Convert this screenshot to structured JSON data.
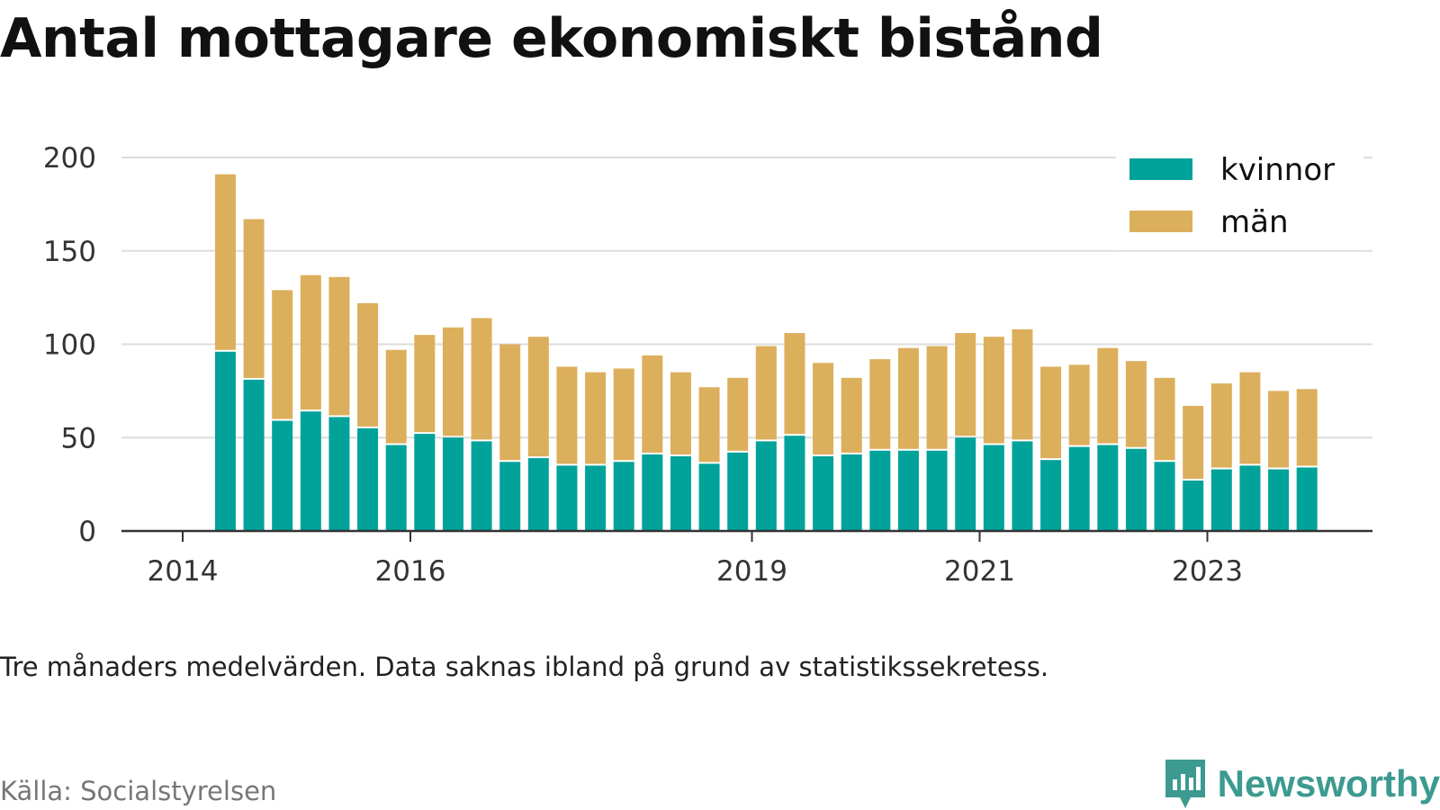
{
  "title": "Antal mottagare ekonomiskt bistånd",
  "note": "Tre månaders medelvärden. Data saknas ibland på grund av statistikssekretess.",
  "source": "Källa: Socialstyrelsen",
  "brand": "Newsworthy",
  "colors": {
    "kvinnor": "#00a29a",
    "man": "#dcaf5c",
    "grid": "#dddddd",
    "axis": "#333333",
    "brand": "#3c9a90"
  },
  "chart_data": {
    "type": "bar",
    "stacked": true,
    "x_ticks": [
      "2014",
      "2016",
      "2019",
      "2021",
      "2023"
    ],
    "y_ticks": [
      0,
      50,
      100,
      150,
      200
    ],
    "ylim": [
      0,
      200
    ],
    "grid": true,
    "legend_position": "top-right",
    "x_unit": "quarter",
    "x": [
      "2014-Q2",
      "2014-Q3",
      "2014-Q4",
      "2015-Q1",
      "2015-Q2",
      "2015-Q3",
      "2015-Q4",
      "2016-Q1",
      "2016-Q2",
      "2016-Q3",
      "2016-Q4",
      "2017-Q1",
      "2017-Q2",
      "2017-Q3",
      "2017-Q4",
      "2018-Q1",
      "2018-Q2",
      "2018-Q3",
      "2018-Q4",
      "2019-Q1",
      "2019-Q2",
      "2019-Q3",
      "2019-Q4",
      "2020-Q1",
      "2020-Q2",
      "2020-Q3",
      "2020-Q4",
      "2021-Q1",
      "2021-Q2",
      "2021-Q3",
      "2021-Q4",
      "2022-Q1",
      "2022-Q2",
      "2022-Q3",
      "2022-Q4",
      "2023-Q1",
      "2023-Q2",
      "2023-Q3",
      "2023-Q4"
    ],
    "series": [
      {
        "name": "kvinnor",
        "values": [
          96,
          81,
          59,
          64,
          61,
          55,
          46,
          52,
          50,
          48,
          37,
          39,
          35,
          35,
          37,
          41,
          40,
          36,
          42,
          48,
          51,
          40,
          41,
          43,
          43,
          43,
          50,
          46,
          48,
          38,
          45,
          46,
          44,
          37,
          27,
          33,
          35,
          33,
          34
        ]
      },
      {
        "name": "män",
        "values": [
          95,
          86,
          70,
          73,
          75,
          67,
          51,
          53,
          59,
          66,
          63,
          65,
          53,
          50,
          50,
          53,
          45,
          41,
          40,
          51,
          55,
          50,
          41,
          49,
          55,
          56,
          56,
          58,
          60,
          50,
          44,
          52,
          47,
          45,
          40,
          46,
          50,
          42,
          42
        ]
      }
    ]
  }
}
